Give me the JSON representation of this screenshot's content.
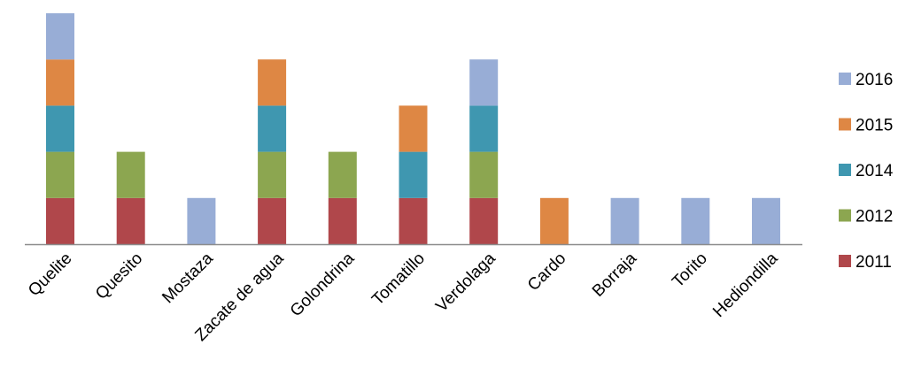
{
  "chart_data": {
    "type": "bar",
    "stacked": true,
    "categories": [
      "Quelite",
      "Quesito",
      "Mostaza",
      "Zacate de agua",
      "Golondrina",
      "Tomatillo",
      "Verdolaga",
      "Cardo",
      "Borraja",
      "Torito",
      "Hediondilla"
    ],
    "series": [
      {
        "name": "2011",
        "color": "#B0474B",
        "values": [
          1,
          1,
          0,
          1,
          1,
          1,
          1,
          0,
          0,
          0,
          0
        ]
      },
      {
        "name": "2012",
        "color": "#8CA650",
        "values": [
          1,
          1,
          0,
          1,
          1,
          0,
          1,
          0,
          0,
          0,
          0
        ]
      },
      {
        "name": "2014",
        "color": "#3F97B0",
        "values": [
          1,
          0,
          0,
          1,
          0,
          1,
          1,
          0,
          0,
          0,
          0
        ]
      },
      {
        "name": "2015",
        "color": "#DE8744",
        "values": [
          1,
          0,
          0,
          1,
          0,
          1,
          0,
          1,
          0,
          0,
          0
        ]
      },
      {
        "name": "2016",
        "color": "#98ADD6",
        "values": [
          1,
          0,
          1,
          0,
          0,
          0,
          1,
          0,
          1,
          1,
          1
        ]
      }
    ],
    "ylim": [
      0,
      5
    ],
    "grid": false,
    "legend_position": "right",
    "legend_order": [
      "2016",
      "2015",
      "2014",
      "2012",
      "2011"
    ]
  }
}
